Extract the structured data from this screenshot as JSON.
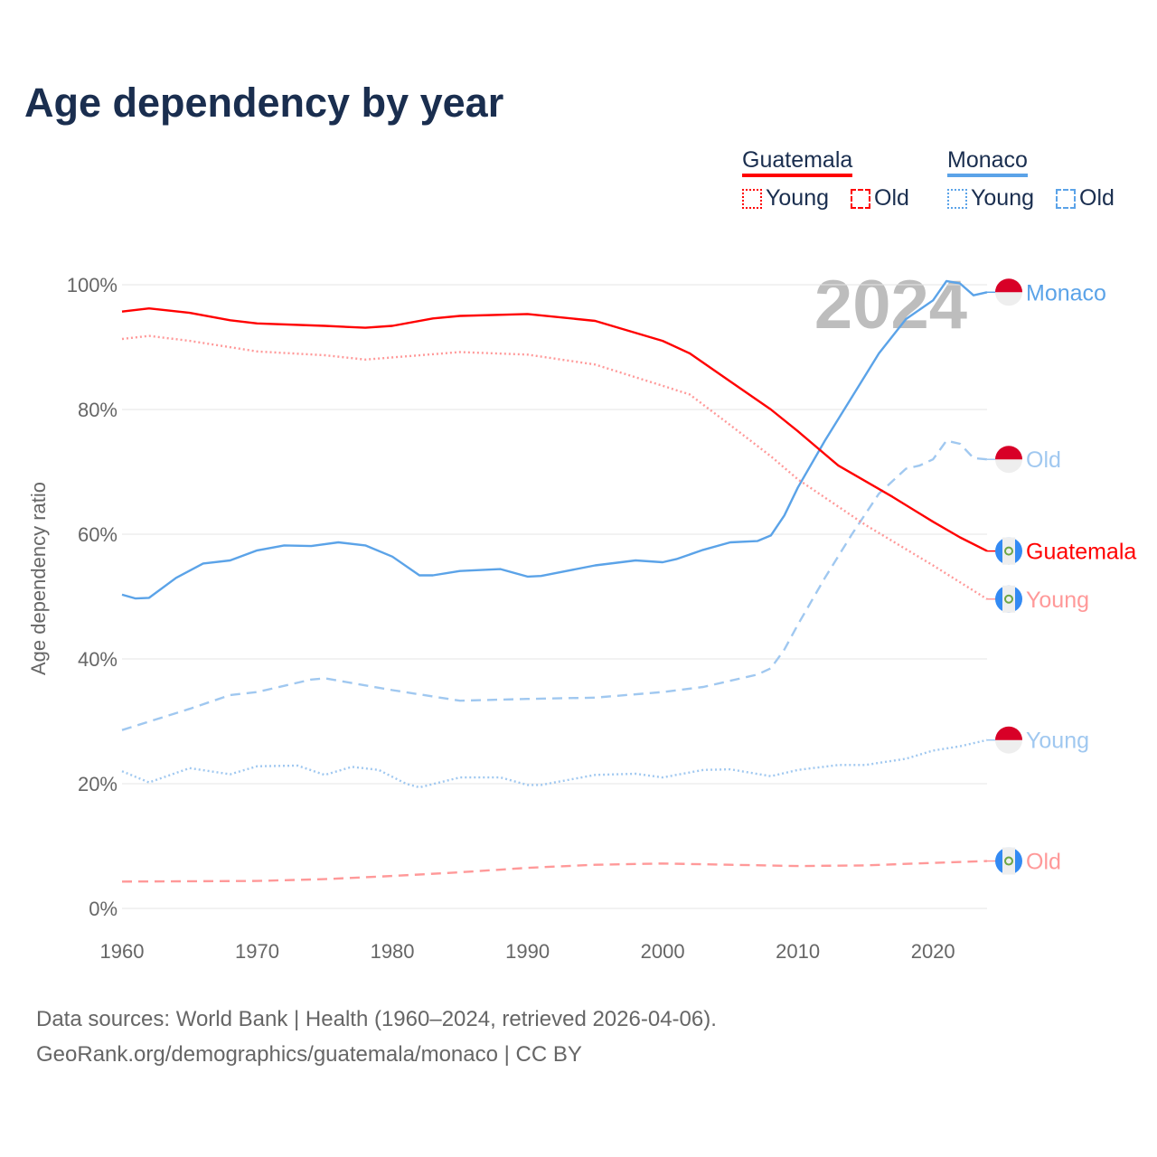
{
  "title": "Age dependency by year",
  "legend": {
    "countries": [
      {
        "name": "Guatemala",
        "color": "#ff0000",
        "young": "Young",
        "old": "Old"
      },
      {
        "name": "Monaco",
        "color": "#5ba3e8",
        "young": "Young",
        "old": "Old"
      }
    ]
  },
  "footer": {
    "line1": "Data sources: World Bank | Health (1960–2024, retrieved 2026-04-06).",
    "line2": "GeoRank.org/demographics/guatemala/monaco | CC BY"
  },
  "chart_data": {
    "type": "line",
    "title": "Age dependency by year",
    "xlabel": "",
    "ylabel": "Age dependency ratio",
    "year_watermark": "2024",
    "xlim": [
      1960,
      2024
    ],
    "ylim": [
      0,
      100
    ],
    "xticks": [
      "1960",
      "1970",
      "1980",
      "1990",
      "2000",
      "2010",
      "2020"
    ],
    "yticks": [
      "0%",
      "20%",
      "40%",
      "60%",
      "80%",
      "100%"
    ],
    "grid": true,
    "series": [
      {
        "name": "Monaco",
        "label": "Monaco",
        "country": "Monaco",
        "kind": "total",
        "color": "#5ba3e8",
        "style": "solid",
        "flag": "monaco-flag",
        "points": [
          [
            1960,
            50.3
          ],
          [
            1961,
            49.7
          ],
          [
            1962,
            49.8
          ],
          [
            1964,
            53
          ],
          [
            1966,
            55.3
          ],
          [
            1968,
            55.8
          ],
          [
            1970,
            57.4
          ],
          [
            1972,
            58.2
          ],
          [
            1974,
            58.1
          ],
          [
            1976,
            58.7
          ],
          [
            1978,
            58.2
          ],
          [
            1980,
            56.4
          ],
          [
            1982,
            53.4
          ],
          [
            1983,
            53.4
          ],
          [
            1985,
            54.1
          ],
          [
            1988,
            54.4
          ],
          [
            1990,
            53.2
          ],
          [
            1991,
            53.3
          ],
          [
            1995,
            55
          ],
          [
            1998,
            55.8
          ],
          [
            2000,
            55.5
          ],
          [
            2001,
            56
          ],
          [
            2003,
            57.5
          ],
          [
            2005,
            58.7
          ],
          [
            2007,
            58.9
          ],
          [
            2008,
            59.8
          ],
          [
            2009,
            63
          ],
          [
            2010,
            67.5
          ],
          [
            2012,
            75
          ],
          [
            2014,
            82
          ],
          [
            2016,
            89
          ],
          [
            2018,
            94.5
          ],
          [
            2020,
            97.5
          ],
          [
            2021,
            100.6
          ],
          [
            2022,
            100.2
          ],
          [
            2023,
            98.3
          ],
          [
            2024,
            98.8
          ]
        ]
      },
      {
        "name": "Monaco Old",
        "label": "Old",
        "country": "Monaco",
        "kind": "old",
        "color": "#a0c8f0",
        "style": "dashed",
        "flag": "monaco-flag",
        "points": [
          [
            1960,
            28.6
          ],
          [
            1965,
            32
          ],
          [
            1968,
            34.2
          ],
          [
            1970,
            34.7
          ],
          [
            1974,
            36.7
          ],
          [
            1975,
            36.9
          ],
          [
            1980,
            35
          ],
          [
            1985,
            33.3
          ],
          [
            1990,
            33.6
          ],
          [
            1995,
            33.8
          ],
          [
            2000,
            34.7
          ],
          [
            2003,
            35.5
          ],
          [
            2007,
            37.5
          ],
          [
            2008,
            38.5
          ],
          [
            2009,
            41.5
          ],
          [
            2010,
            45.5
          ],
          [
            2012,
            53
          ],
          [
            2014,
            60
          ],
          [
            2016,
            66.5
          ],
          [
            2018,
            70.5
          ],
          [
            2019,
            71
          ],
          [
            2020,
            72
          ],
          [
            2021,
            75
          ],
          [
            2022,
            74.5
          ],
          [
            2023,
            72.2
          ],
          [
            2024,
            72
          ]
        ]
      },
      {
        "name": "Guatemala",
        "label": "Guatemala",
        "country": "Guatemala",
        "kind": "total",
        "color": "#ff0000",
        "style": "solid",
        "flag": "guatemala-flag",
        "points": [
          [
            1960,
            95.7
          ],
          [
            1962,
            96.2
          ],
          [
            1965,
            95.5
          ],
          [
            1968,
            94.3
          ],
          [
            1970,
            93.8
          ],
          [
            1975,
            93.4
          ],
          [
            1978,
            93.1
          ],
          [
            1980,
            93.4
          ],
          [
            1983,
            94.6
          ],
          [
            1985,
            95
          ],
          [
            1990,
            95.3
          ],
          [
            1995,
            94.2
          ],
          [
            2000,
            91
          ],
          [
            2002,
            89
          ],
          [
            2005,
            84.5
          ],
          [
            2008,
            80
          ],
          [
            2010,
            76.5
          ],
          [
            2013,
            71
          ],
          [
            2015,
            68.5
          ],
          [
            2017,
            66
          ],
          [
            2020,
            62
          ],
          [
            2022,
            59.5
          ],
          [
            2024,
            57.3
          ]
        ]
      },
      {
        "name": "Guatemala Young",
        "label": "Young",
        "country": "Guatemala",
        "kind": "young",
        "color": "#ff9999",
        "style": "dotted",
        "flag": "guatemala-flag",
        "points": [
          [
            1960,
            91.3
          ],
          [
            1962,
            91.8
          ],
          [
            1965,
            91
          ],
          [
            1970,
            89.3
          ],
          [
            1975,
            88.7
          ],
          [
            1978,
            88
          ],
          [
            1985,
            89.2
          ],
          [
            1990,
            88.8
          ],
          [
            1995,
            87.2
          ],
          [
            2000,
            83.8
          ],
          [
            2002,
            82.4
          ],
          [
            2005,
            77.5
          ],
          [
            2008,
            72.5
          ],
          [
            2010,
            68.8
          ],
          [
            2015,
            61.5
          ],
          [
            2020,
            55
          ],
          [
            2024,
            49.6
          ]
        ]
      },
      {
        "name": "Monaco Young",
        "label": "Young",
        "country": "Monaco",
        "kind": "young",
        "color": "#a0c8f0",
        "style": "dotted",
        "flag": "monaco-flag",
        "points": [
          [
            1960,
            22
          ],
          [
            1962,
            20.2
          ],
          [
            1965,
            22.5
          ],
          [
            1968,
            21.5
          ],
          [
            1970,
            22.8
          ],
          [
            1973,
            22.9
          ],
          [
            1975,
            21.4
          ],
          [
            1977,
            22.7
          ],
          [
            1979,
            22.2
          ],
          [
            1981,
            20
          ],
          [
            1982,
            19.4
          ],
          [
            1985,
            21
          ],
          [
            1988,
            21
          ],
          [
            1990,
            19.8
          ],
          [
            1991,
            19.8
          ],
          [
            1995,
            21.4
          ],
          [
            1998,
            21.6
          ],
          [
            2000,
            21
          ],
          [
            2003,
            22.2
          ],
          [
            2005,
            22.3
          ],
          [
            2008,
            21.2
          ],
          [
            2010,
            22.2
          ],
          [
            2013,
            23
          ],
          [
            2015,
            23
          ],
          [
            2018,
            24
          ],
          [
            2020,
            25.3
          ],
          [
            2022,
            26
          ],
          [
            2024,
            27
          ]
        ]
      },
      {
        "name": "Guatemala Old",
        "label": "Old",
        "country": "Guatemala",
        "kind": "old",
        "color": "#ff9999",
        "style": "dashed",
        "flag": "guatemala-flag",
        "points": [
          [
            1960,
            4.3
          ],
          [
            1970,
            4.4
          ],
          [
            1975,
            4.7
          ],
          [
            1980,
            5.2
          ],
          [
            1985,
            5.8
          ],
          [
            1990,
            6.5
          ],
          [
            1995,
            7
          ],
          [
            2000,
            7.2
          ],
          [
            2005,
            7
          ],
          [
            2010,
            6.8
          ],
          [
            2015,
            6.9
          ],
          [
            2020,
            7.3
          ],
          [
            2024,
            7.6
          ]
        ]
      }
    ]
  }
}
